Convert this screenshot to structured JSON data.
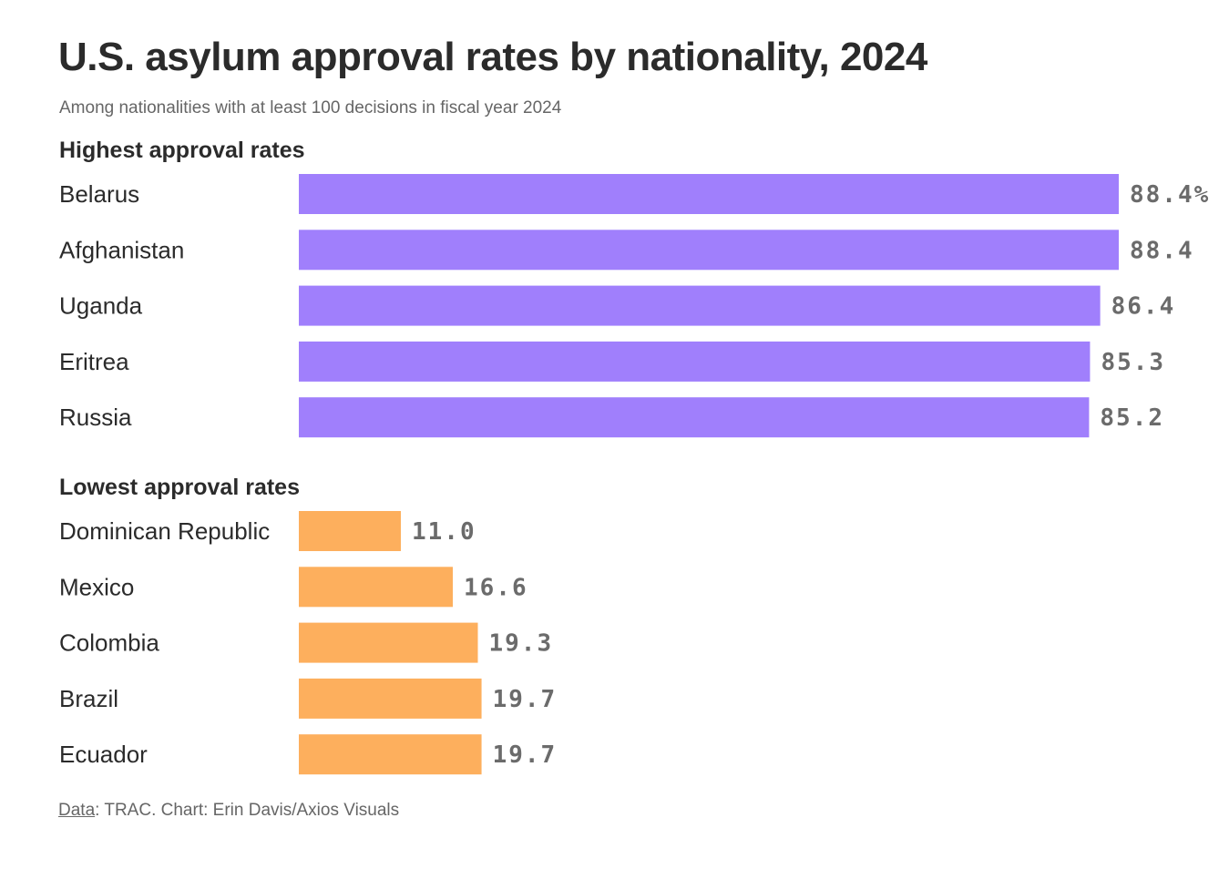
{
  "chart_data": {
    "type": "bar",
    "orientation": "horizontal",
    "title": "U.S. asylum approval rates by nationality, 2024",
    "subtitle": "Among nationalities with at least 100 decisions in fiscal year 2024",
    "unit": "%",
    "xlim": [
      0,
      100
    ],
    "grid": false,
    "colors": {
      "highest": "#a07ffc",
      "lowest": "#fdaf5d"
    },
    "groups": [
      {
        "name": "Highest approval rates",
        "key": "highest",
        "categories": [
          "Belarus",
          "Afghanistan",
          "Uganda",
          "Eritrea",
          "Russia"
        ],
        "values": [
          88.4,
          88.4,
          86.4,
          85.3,
          85.2
        ],
        "labels": [
          "88.4%",
          "88.4",
          "86.4",
          "85.3",
          "85.2"
        ]
      },
      {
        "name": "Lowest approval rates",
        "key": "lowest",
        "categories": [
          "Dominican Republic",
          "Mexico",
          "Colombia",
          "Brazil",
          "Ecuador"
        ],
        "values": [
          11.0,
          16.6,
          19.3,
          19.7,
          19.7
        ],
        "labels": [
          "11.0",
          "16.6",
          "19.3",
          "19.7",
          "19.7"
        ]
      }
    ]
  },
  "footer": {
    "source_link": "Data",
    "source_rest": ": TRAC. Chart: Erin Davis/Axios Visuals"
  }
}
